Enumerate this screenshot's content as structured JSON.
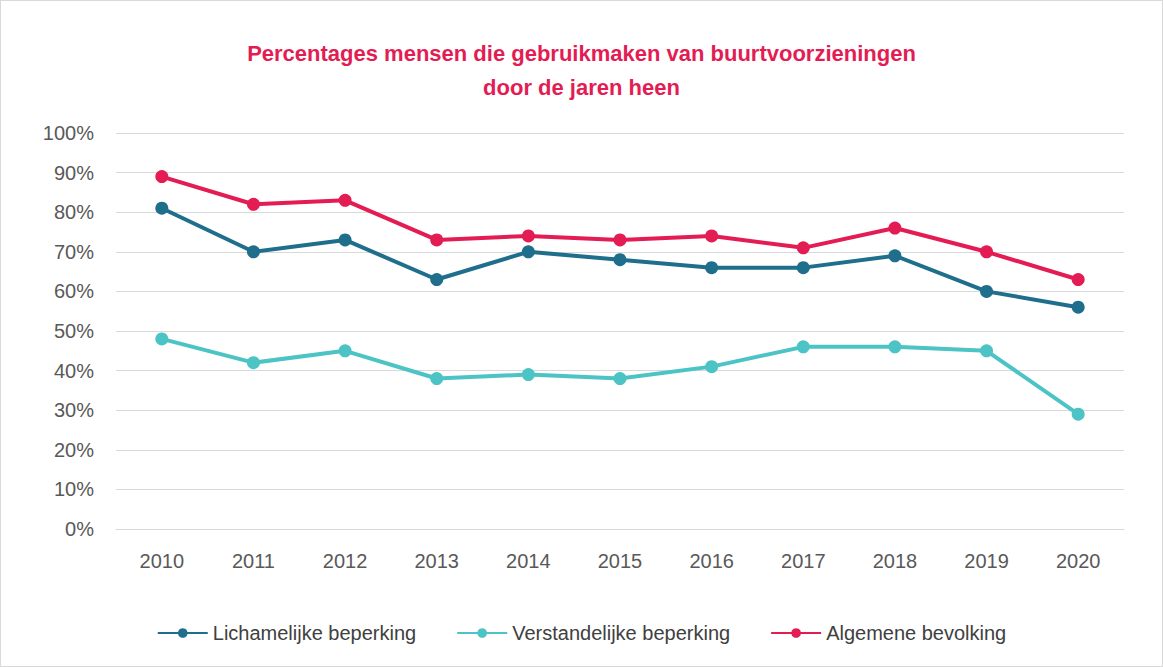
{
  "chart_data": {
    "type": "line",
    "title": "Percentages mensen die gebruikmaken van buurtvoorzieningen\ndoor de jaren heen",
    "categories": [
      "2010",
      "2011",
      "2012",
      "2013",
      "2014",
      "2015",
      "2016",
      "2017",
      "2018",
      "2019",
      "2020"
    ],
    "series": [
      {
        "name": "Lichamelijke beperking",
        "color": "#1f6e8c",
        "values": [
          81,
          70,
          73,
          63,
          70,
          68,
          66,
          66,
          69,
          60,
          56
        ]
      },
      {
        "name": "Verstandelijke beperking",
        "color": "#4cc3c5",
        "values": [
          48,
          42,
          45,
          38,
          39,
          38,
          41,
          46,
          46,
          45,
          29
        ]
      },
      {
        "name": "Algemene bevolking",
        "color": "#e31c54",
        "values": [
          89,
          82,
          83,
          73,
          74,
          73,
          74,
          71,
          76,
          70,
          63
        ]
      }
    ],
    "ylim": [
      0,
      100
    ],
    "yticks": [
      {
        "value": 0,
        "label": "0%"
      },
      {
        "value": 10,
        "label": "10%"
      },
      {
        "value": 20,
        "label": "20%"
      },
      {
        "value": 30,
        "label": "30%"
      },
      {
        "value": 40,
        "label": "40%"
      },
      {
        "value": 50,
        "label": "50%"
      },
      {
        "value": 60,
        "label": "60%"
      },
      {
        "value": 70,
        "label": "70%"
      },
      {
        "value": 80,
        "label": "80%"
      },
      {
        "value": 90,
        "label": "90%"
      },
      {
        "value": 100,
        "label": "100%"
      }
    ],
    "grid": true,
    "legend": "bottom",
    "marker": "circle",
    "line_style": "solid"
  }
}
